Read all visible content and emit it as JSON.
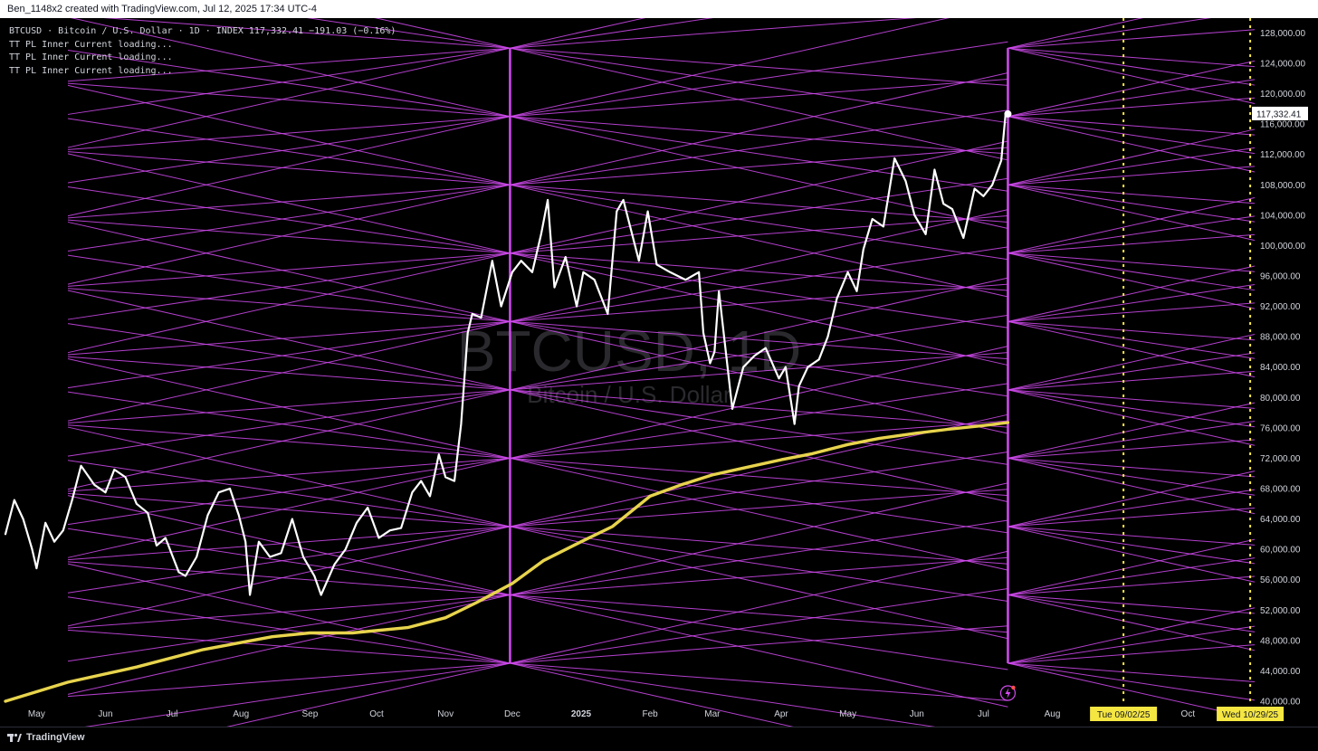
{
  "header": {
    "credit": "Ben_1148x2 created with TradingView.com, Jul 12, 2025 17:34 UTC-4"
  },
  "legend": {
    "symbol_line": "BTCUSD · Bitcoin / U.S. Dollar · 1D · INDEX  117,332.41  −191.03 (−0.16%)",
    "indicator_lines": [
      "TT PL Inner Current loading...",
      "TT PL Inner Current loading...",
      "TT PL Inner Current loading..."
    ]
  },
  "watermark": {
    "symbol": "BTCUSD, 1D",
    "name": "Bitcoin / U.S. Dollar"
  },
  "footer": {
    "brand": "TradingView"
  },
  "colors": {
    "background": "#000000",
    "price_line": "#ffffff",
    "moving_average": "#e8d44d",
    "pitch_lines": "#d24bf0",
    "cycle_markers": "#f5e642",
    "axis_text": "#d1d4dc"
  },
  "chart_data": {
    "type": "line",
    "title": "BTCUSD · Bitcoin / U.S. Dollar · 1D · INDEX",
    "y_axis": {
      "position": "right",
      "ylim": [
        40000,
        129000
      ],
      "ticks": [
        40000,
        44000,
        48000,
        52000,
        56000,
        60000,
        64000,
        68000,
        72000,
        76000,
        80000,
        84000,
        88000,
        92000,
        96000,
        100000,
        104000,
        108000,
        112000,
        116000,
        120000,
        124000,
        128000
      ],
      "tick_labels": [
        "40,000.00",
        "44,000.00",
        "48,000.00",
        "52,000.00",
        "56,000.00",
        "60,000.00",
        "64,000.00",
        "68,000.00",
        "72,000.00",
        "76,000.00",
        "80,000.00",
        "84,000.00",
        "88,000.00",
        "92,000.00",
        "96,000.00",
        "100,000.00",
        "104,000.00",
        "108,000.00",
        "112,000.00",
        "116,000.00",
        "120,000.00",
        "124,000.00",
        "128,000.00"
      ]
    },
    "x_axis": {
      "xlim": [
        "2024-04-17",
        "2025-10-31"
      ],
      "ticks": [
        "2024-05-01",
        "2024-06-01",
        "2024-07-01",
        "2024-08-01",
        "2024-09-01",
        "2024-10-01",
        "2024-11-01",
        "2024-12-01",
        "2025-01-01",
        "2025-02-01",
        "2025-03-01",
        "2025-04-01",
        "2025-05-01",
        "2025-06-01",
        "2025-07-01",
        "2025-08-01",
        "2025-10-01"
      ],
      "tick_labels": [
        "May",
        "Jun",
        "Jul",
        "Aug",
        "Sep",
        "Oct",
        "Nov",
        "Dec",
        "2025",
        "Feb",
        "Mar",
        "Apr",
        "May",
        "Jun",
        "Jul",
        "Aug",
        "Oct"
      ],
      "bold_ticks": [
        "2025"
      ]
    },
    "series": [
      {
        "name": "BTCUSD",
        "color": "#ffffff",
        "x": [
          "2024-04-17",
          "2024-04-21",
          "2024-04-25",
          "2024-04-29",
          "2024-05-01",
          "2024-05-05",
          "2024-05-09",
          "2024-05-13",
          "2024-05-17",
          "2024-05-21",
          "2024-05-27",
          "2024-06-01",
          "2024-06-05",
          "2024-06-10",
          "2024-06-15",
          "2024-06-20",
          "2024-06-24",
          "2024-06-28",
          "2024-07-04",
          "2024-07-07",
          "2024-07-12",
          "2024-07-17",
          "2024-07-22",
          "2024-07-27",
          "2024-07-31",
          "2024-08-03",
          "2024-08-05",
          "2024-08-09",
          "2024-08-14",
          "2024-08-19",
          "2024-08-24",
          "2024-08-29",
          "2024-09-03",
          "2024-09-06",
          "2024-09-12",
          "2024-09-17",
          "2024-09-22",
          "2024-09-27",
          "2024-10-02",
          "2024-10-07",
          "2024-10-12",
          "2024-10-17",
          "2024-10-21",
          "2024-10-25",
          "2024-10-29",
          "2024-11-01",
          "2024-11-05",
          "2024-11-08",
          "2024-11-11",
          "2024-11-13",
          "2024-11-17",
          "2024-11-22",
          "2024-11-26",
          "2024-12-01",
          "2024-12-05",
          "2024-12-10",
          "2024-12-14",
          "2024-12-17",
          "2024-12-20",
          "2024-12-25",
          "2024-12-30",
          "2025-01-02",
          "2025-01-07",
          "2025-01-13",
          "2025-01-17",
          "2025-01-20",
          "2025-01-27",
          "2025-01-31",
          "2025-02-04",
          "2025-02-10",
          "2025-02-17",
          "2025-02-23",
          "2025-02-25",
          "2025-02-28",
          "2025-03-02",
          "2025-03-04",
          "2025-03-10",
          "2025-03-15",
          "2025-03-20",
          "2025-03-25",
          "2025-03-31",
          "2025-04-03",
          "2025-04-07",
          "2025-04-09",
          "2025-04-13",
          "2025-04-18",
          "2025-04-22",
          "2025-04-26",
          "2025-05-01",
          "2025-05-05",
          "2025-05-08",
          "2025-05-12",
          "2025-05-17",
          "2025-05-22",
          "2025-05-27",
          "2025-05-31",
          "2025-06-05",
          "2025-06-09",
          "2025-06-13",
          "2025-06-17",
          "2025-06-22",
          "2025-06-27",
          "2025-07-01",
          "2025-07-05",
          "2025-07-09",
          "2025-07-11",
          "2025-07-12"
        ],
        "values": [
          62000,
          66500,
          64000,
          60000,
          57500,
          63500,
          61000,
          62500,
          66500,
          71000,
          68500,
          67500,
          70500,
          69500,
          66000,
          64800,
          60500,
          61500,
          57000,
          56500,
          59000,
          64500,
          67500,
          68000,
          64500,
          61000,
          54000,
          61000,
          59000,
          59500,
          64000,
          59000,
          56500,
          54000,
          58000,
          60000,
          63500,
          65500,
          61500,
          62500,
          62800,
          67500,
          69000,
          67000,
          72500,
          69500,
          69000,
          76500,
          88500,
          91000,
          90500,
          98000,
          92000,
          96500,
          98000,
          96500,
          101500,
          106000,
          94500,
          98500,
          92000,
          96500,
          95500,
          91000,
          104500,
          106000,
          98000,
          104500,
          97500,
          96500,
          95500,
          96500,
          88500,
          84500,
          86000,
          94000,
          78500,
          84000,
          85500,
          86500,
          82500,
          84000,
          76500,
          81500,
          84000,
          85000,
          88000,
          93000,
          96500,
          94000,
          99500,
          103500,
          102500,
          111500,
          108500,
          104000,
          101500,
          110000,
          105500,
          104800,
          101000,
          107500,
          106500,
          108000,
          111200,
          117500,
          117332
        ]
      },
      {
        "name": "Moving Average",
        "color": "#e8d44d",
        "x": [
          "2024-04-17",
          "2024-05-15",
          "2024-06-15",
          "2024-07-15",
          "2024-08-15",
          "2024-09-01",
          "2024-09-20",
          "2024-10-15",
          "2024-11-01",
          "2024-11-15",
          "2024-12-01",
          "2024-12-15",
          "2025-01-01",
          "2025-01-15",
          "2025-02-01",
          "2025-02-15",
          "2025-03-01",
          "2025-03-15",
          "2025-04-01",
          "2025-04-15",
          "2025-05-01",
          "2025-05-15",
          "2025-06-01",
          "2025-06-15",
          "2025-07-01",
          "2025-07-12"
        ],
        "values": [
          40000,
          42500,
          44500,
          46800,
          48500,
          49000,
          49000,
          49700,
          51000,
          53000,
          55500,
          58500,
          61000,
          63000,
          67000,
          68500,
          69800,
          70700,
          71800,
          72600,
          73800,
          74600,
          75300,
          75800,
          76300,
          76700
        ]
      }
    ],
    "vertical_lines": [
      {
        "x": "2024-11-30",
        "color": "#d24bf0",
        "style": "solid"
      },
      {
        "x": "2025-07-12",
        "color": "#d24bf0",
        "style": "solid"
      },
      {
        "x": "2025-09-02",
        "color": "#f5e642",
        "style": "dotted",
        "label": "Tue 09/02/25"
      },
      {
        "x": "2025-10-29",
        "color": "#f5e642",
        "style": "dotted",
        "label": "Wed 10/29/25"
      }
    ],
    "current_price_label": "117,332.41"
  }
}
